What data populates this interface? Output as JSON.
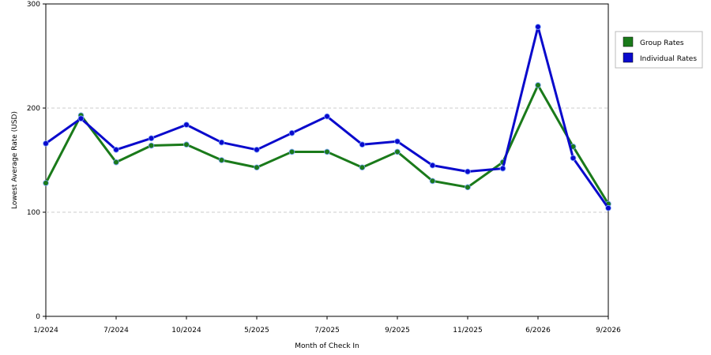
{
  "chart_data": {
    "type": "line",
    "x": [
      "1/2024",
      "",
      "7/2024",
      "",
      "10/2024",
      "",
      "5/2025",
      "",
      "7/2025",
      "",
      "9/2025",
      "",
      "11/2025",
      "",
      "6/2026",
      "",
      "9/2026"
    ],
    "series": [
      {
        "name": "Group Rates",
        "color": "#1a7a1a",
        "values": [
          128,
          193,
          148,
          164,
          165,
          150,
          143,
          158,
          158,
          143,
          158,
          130,
          124,
          148,
          222,
          163,
          108
        ]
      },
      {
        "name": "Individual Rates",
        "color": "#0a0acc",
        "values": [
          166,
          190,
          160,
          171,
          184,
          167,
          160,
          176,
          192,
          165,
          168,
          145,
          139,
          142,
          278,
          152,
          104
        ]
      }
    ],
    "xlabel": "Month of Check In",
    "ylabel": "Lowest Average Rate (USD)",
    "ylim": [
      0,
      300
    ],
    "yticks": [
      0,
      100,
      200,
      300
    ],
    "grid": true,
    "legend_position": "right"
  }
}
